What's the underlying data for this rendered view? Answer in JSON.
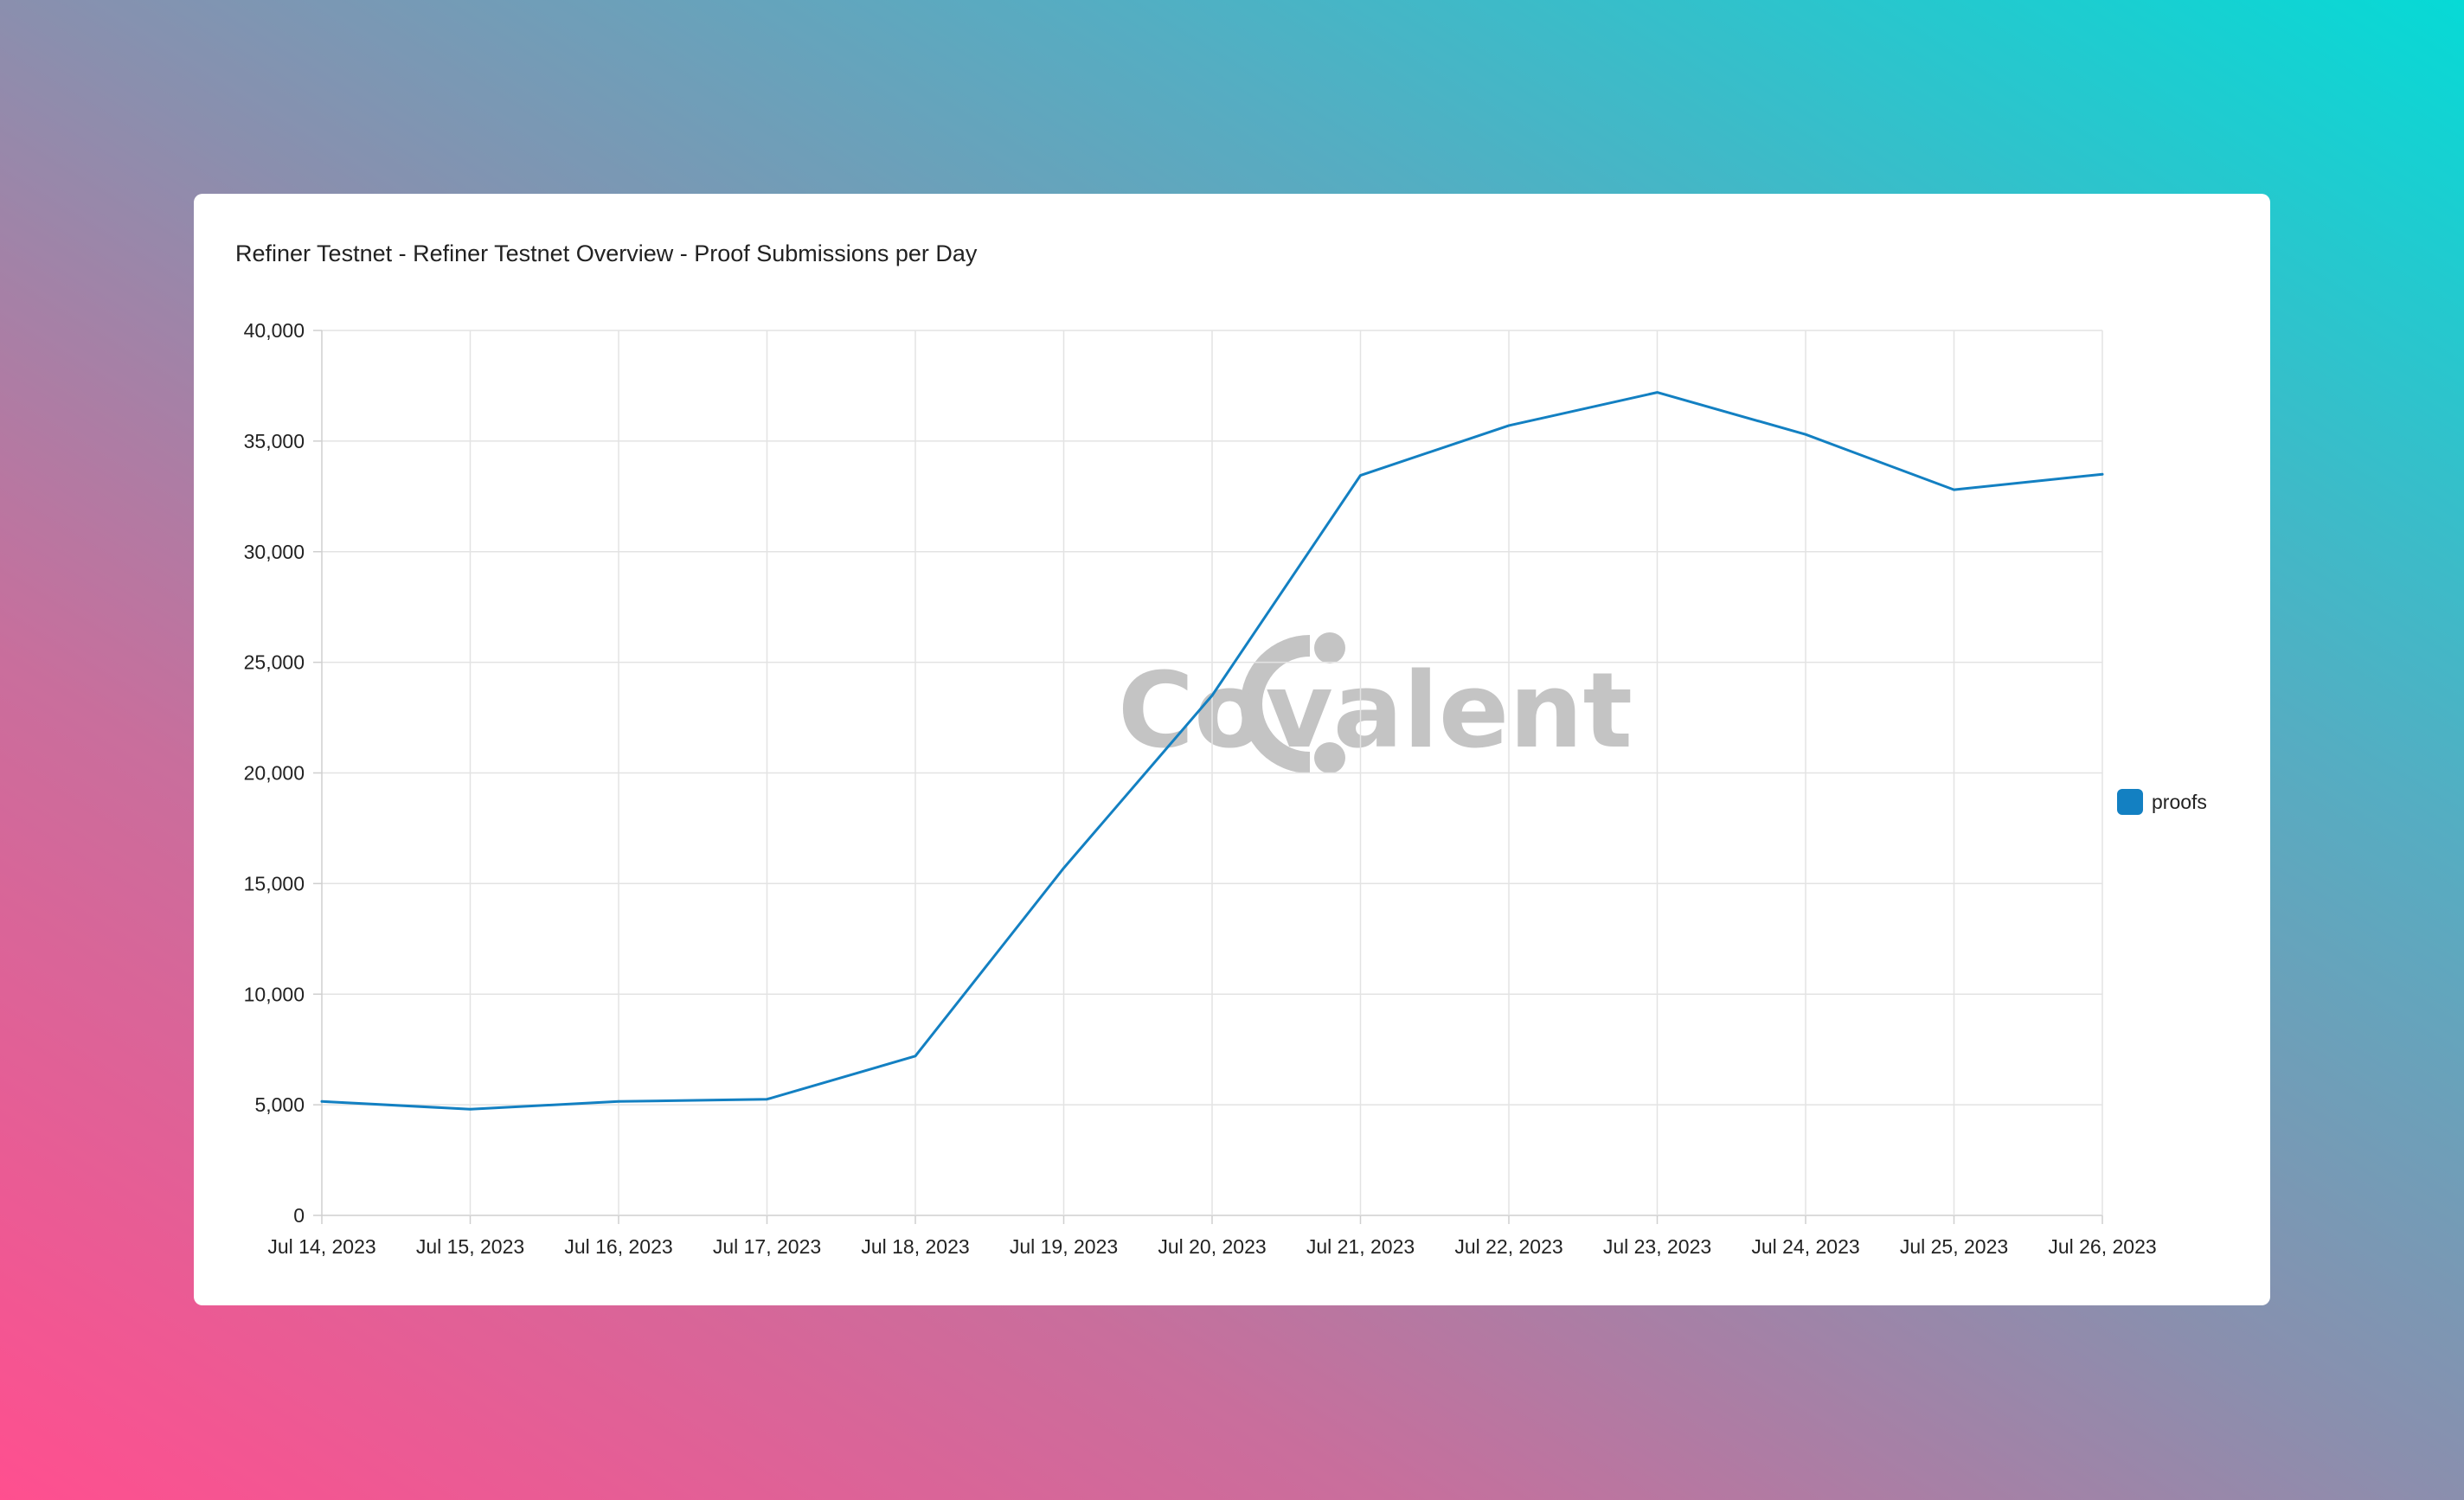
{
  "watermark": {
    "brand": "Covalent"
  },
  "colors": {
    "series": "#1380c2",
    "watermark": "#c4c4c4"
  },
  "chart_data": {
    "type": "line",
    "title": "Refiner Testnet - Refiner Testnet Overview - Proof Submissions per Day",
    "xlabel": "",
    "ylabel": "",
    "x": [
      "Jul 14, 2023",
      "Jul 15, 2023",
      "Jul 16, 2023",
      "Jul 17, 2023",
      "Jul 18, 2023",
      "Jul 19, 2023",
      "Jul 20, 2023",
      "Jul 21, 2023",
      "Jul 22, 2023",
      "Jul 23, 2023",
      "Jul 24, 2023",
      "Jul 25, 2023",
      "Jul 26, 2023"
    ],
    "series": [
      {
        "name": "proofs",
        "values": [
          5150,
          4800,
          5150,
          5250,
          7200,
          15700,
          23500,
          33450,
          35700,
          37200,
          35300,
          32800,
          33500
        ]
      }
    ],
    "ylim": [
      0,
      40000
    ],
    "yticks": [
      0,
      5000,
      10000,
      15000,
      20000,
      25000,
      30000,
      35000,
      40000
    ],
    "ytick_labels": [
      "0",
      "5,000",
      "10,000",
      "15,000",
      "20,000",
      "25,000",
      "30,000",
      "35,000",
      "40,000"
    ],
    "grid": true,
    "legend_position": "right"
  }
}
